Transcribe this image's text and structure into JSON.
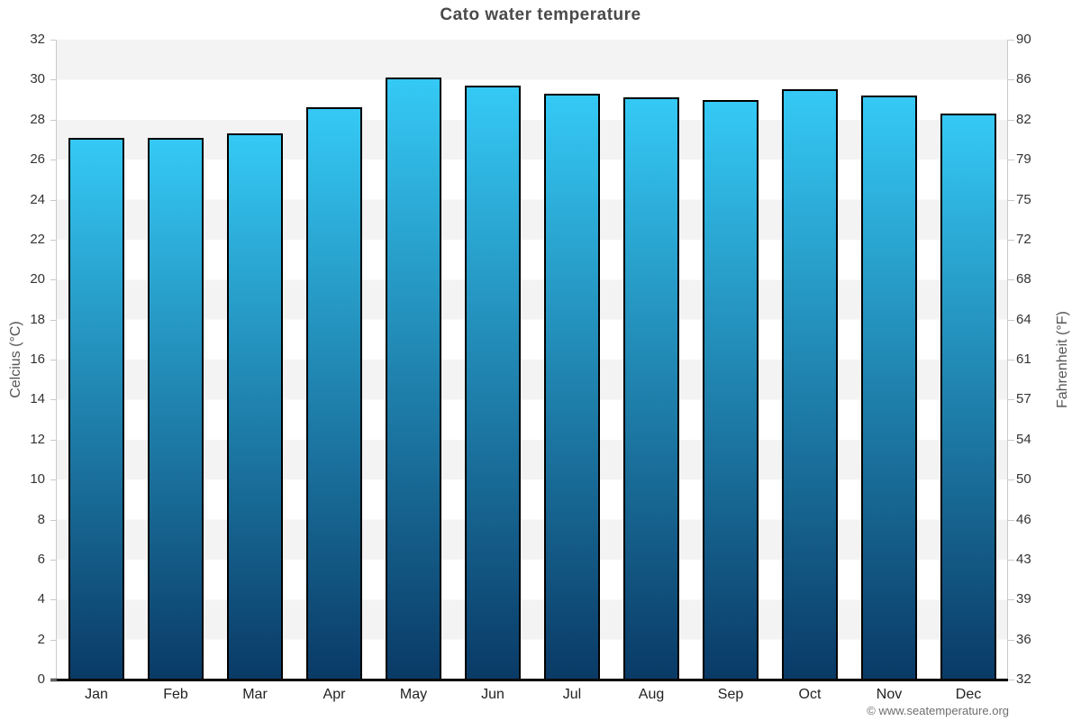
{
  "chart_data": {
    "type": "bar",
    "title": "Cato water temperature",
    "categories": [
      "Jan",
      "Feb",
      "Mar",
      "Apr",
      "May",
      "Jun",
      "Jul",
      "Aug",
      "Sep",
      "Oct",
      "Nov",
      "Dec"
    ],
    "values": [
      27.1,
      27.1,
      27.3,
      28.6,
      30.1,
      29.7,
      29.3,
      29.1,
      29.0,
      29.5,
      29.2,
      28.3
    ],
    "ylabel_left": "Celcius (°C)",
    "ylabel_right": "Fahrenheit (°F)",
    "ylim": [
      0,
      32
    ],
    "yticks_left": [
      0,
      2,
      4,
      6,
      8,
      10,
      12,
      14,
      16,
      18,
      20,
      22,
      24,
      26,
      28,
      30,
      32
    ],
    "yticks_right": [
      32,
      36,
      39,
      43,
      46,
      50,
      54,
      57,
      61,
      64,
      68,
      72,
      75,
      79,
      82,
      86,
      90
    ],
    "grid": "alternating horizontal gray/white bands every 2 degrees C",
    "legend": "none",
    "colors": {
      "bar_top": "#35c9f5",
      "bar_bottom": "#0a3a66",
      "bar_border": "#000000",
      "band_gray": "#f3f3f3",
      "axis_line": "#c9c9c9"
    },
    "attribution": "© www.seatemperature.org"
  }
}
